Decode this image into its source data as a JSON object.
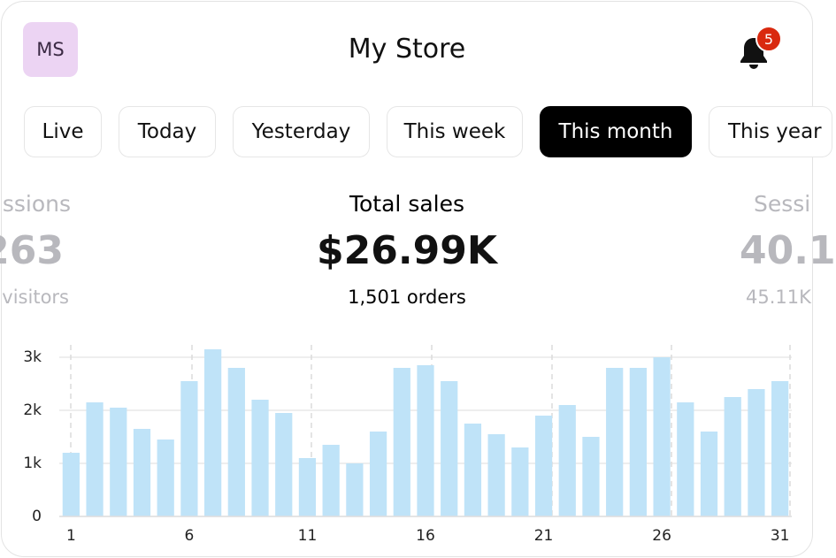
{
  "header": {
    "avatar": "MS",
    "title": "My Store",
    "notification_count": "5"
  },
  "filters": [
    {
      "label": "Live",
      "selected": false
    },
    {
      "label": "Today",
      "selected": false
    },
    {
      "label": "Yesterday",
      "selected": false
    },
    {
      "label": "This week",
      "selected": false
    },
    {
      "label": "This month",
      "selected": true
    },
    {
      "label": "This year",
      "selected": false
    }
  ],
  "stats": {
    "left": {
      "label": "ssions",
      "value": "263",
      "sub": "visitors"
    },
    "center": {
      "label": "Total sales",
      "value": "$26.99K",
      "sub": "1,501 orders"
    },
    "right": {
      "label": "Sessi",
      "value": "40.1",
      "sub": "45.11K"
    }
  },
  "chart_data": {
    "type": "bar",
    "color": "#bfe3f8",
    "grid": true,
    "categories": [
      "1",
      null,
      null,
      null,
      null,
      "6",
      null,
      null,
      null,
      null,
      "11",
      null,
      null,
      null,
      null,
      "16",
      null,
      null,
      null,
      null,
      "21",
      null,
      null,
      null,
      null,
      "26",
      null,
      null,
      null,
      null,
      "31"
    ],
    "values": [
      1200,
      2150,
      2050,
      1650,
      1450,
      2550,
      3150,
      2800,
      2200,
      1950,
      1100,
      1350,
      1000,
      1600,
      2800,
      2850,
      2550,
      1750,
      1550,
      1300,
      1900,
      2100,
      1500,
      2800,
      2800,
      3000,
      2150,
      1600,
      2250,
      2400,
      2550
    ],
    "ylim": [
      0,
      3200
    ],
    "yticks": [
      0,
      {
        "value": 1000,
        "label": "1k"
      },
      {
        "value": 2000,
        "label": "2k"
      },
      {
        "value": 3000,
        "label": "3k"
      }
    ]
  }
}
